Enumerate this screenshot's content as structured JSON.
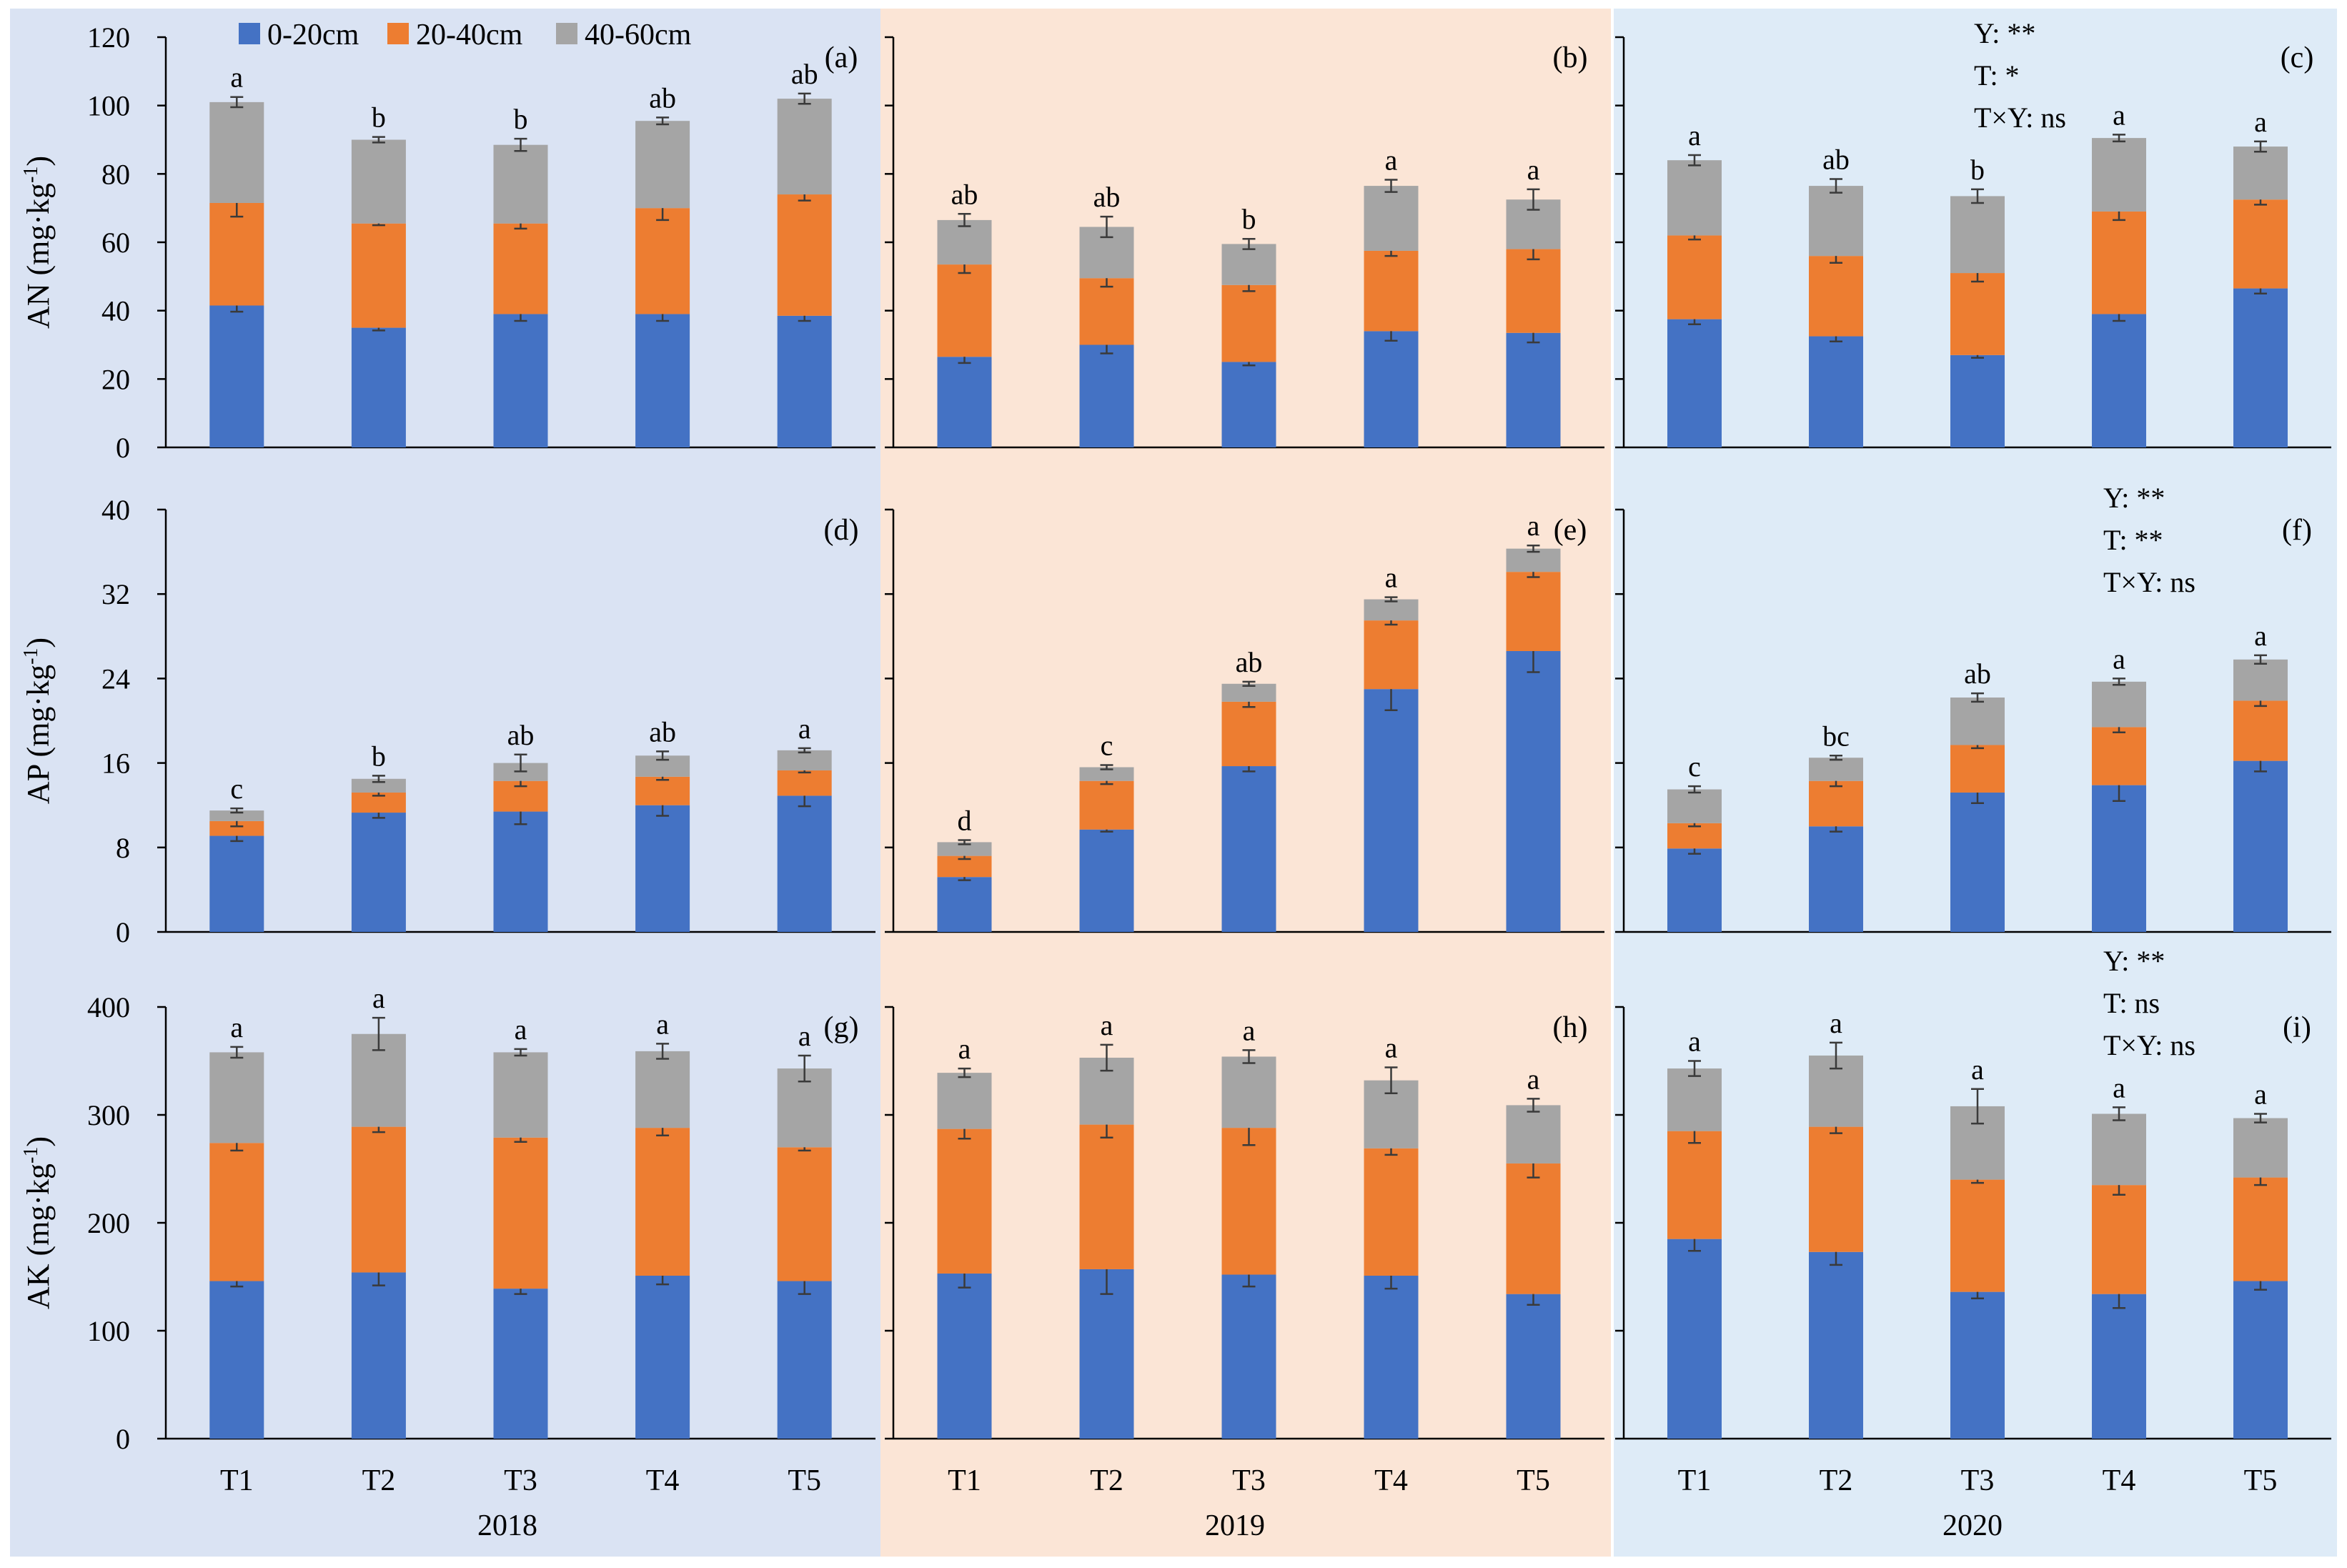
{
  "legend": [
    {
      "name": "0-20cm",
      "color": "#4472C4"
    },
    {
      "name": "20-40cm",
      "color": "#ED7D31"
    },
    {
      "name": "40-60cm",
      "color": "#A5A5A5"
    }
  ],
  "columns": [
    {
      "year": "2018",
      "background": "#DAE3F3"
    },
    {
      "year": "2019",
      "background": "#FBE5D6"
    },
    {
      "year": "2020",
      "background": "#DEEBF7"
    }
  ],
  "categories": [
    "T1",
    "T2",
    "T3",
    "T4",
    "T5"
  ],
  "rows": [
    {
      "ylabel": "AN (mg·kg",
      "ylabel_sup": "-1",
      "ylabel_tail": ")",
      "ylim": [
        0,
        120
      ],
      "ticks": [
        0,
        20,
        40,
        60,
        80,
        100,
        120
      ]
    },
    {
      "ylabel": "AP (mg·kg",
      "ylabel_sup": "-1",
      "ylabel_tail": ")",
      "ylim": [
        0,
        40
      ],
      "ticks": [
        0,
        8,
        16,
        24,
        32,
        40
      ]
    },
    {
      "ylabel": "AK (mg·kg",
      "ylabel_sup": "-1",
      "ylabel_tail": ")",
      "ylim": [
        0,
        400
      ],
      "ticks": [
        0,
        100,
        200,
        300,
        400
      ]
    }
  ],
  "chart_data": [
    {
      "type": "bar",
      "panel": "(a)",
      "variable": "AN",
      "year": "2018",
      "categories": [
        "T1",
        "T2",
        "T3",
        "T4",
        "T5"
      ],
      "series": [
        {
          "name": "0-20cm",
          "values": [
            41.5,
            35.0,
            39.0,
            39.0,
            38.5
          ],
          "errors": [
            1.8,
            0.8,
            2.0,
            2.0,
            1.5
          ]
        },
        {
          "name": "20-40cm",
          "values": [
            30.0,
            30.5,
            26.5,
            31.0,
            35.5
          ],
          "errors": [
            4.0,
            0.5,
            1.5,
            3.5,
            1.8
          ]
        },
        {
          "name": "40-60cm",
          "values": [
            29.5,
            24.5,
            23.0,
            25.5,
            28.0
          ],
          "errors": [
            1.5,
            0.8,
            1.8,
            1.0,
            1.5
          ]
        }
      ],
      "letters": [
        "a",
        "b",
        "b",
        "ab",
        "ab"
      ],
      "stats": []
    },
    {
      "type": "bar",
      "panel": "(b)",
      "variable": "AN",
      "year": "2019",
      "categories": [
        "T1",
        "T2",
        "T3",
        "T4",
        "T5"
      ],
      "series": [
        {
          "name": "0-20cm",
          "values": [
            26.5,
            30.0,
            25.0,
            34.0,
            33.5
          ],
          "errors": [
            1.8,
            2.5,
            1.0,
            2.8,
            2.8
          ]
        },
        {
          "name": "20-40cm",
          "values": [
            27.0,
            19.5,
            22.5,
            23.5,
            24.5
          ],
          "errors": [
            2.5,
            2.5,
            1.8,
            1.5,
            3.0
          ]
        },
        {
          "name": "40-60cm",
          "values": [
            13.0,
            15.0,
            12.0,
            19.0,
            14.5
          ],
          "errors": [
            1.8,
            3.0,
            1.5,
            1.8,
            3.0
          ]
        }
      ],
      "letters": [
        "ab",
        "ab",
        "b",
        "a",
        "a"
      ],
      "stats": []
    },
    {
      "type": "bar",
      "panel": "(c)",
      "variable": "AN",
      "year": "2020",
      "categories": [
        "T1",
        "T2",
        "T3",
        "T4",
        "T5"
      ],
      "series": [
        {
          "name": "0-20cm",
          "values": [
            37.5,
            32.5,
            27.0,
            39.0,
            46.5
          ],
          "errors": [
            1.5,
            1.5,
            0.8,
            2.0,
            1.5
          ]
        },
        {
          "name": "20-40cm",
          "values": [
            24.5,
            23.5,
            24.0,
            30.0,
            26.0
          ],
          "errors": [
            1.2,
            2.0,
            2.5,
            2.5,
            1.5
          ]
        },
        {
          "name": "40-60cm",
          "values": [
            22.0,
            20.5,
            22.5,
            21.5,
            15.5
          ],
          "errors": [
            1.5,
            2.0,
            2.0,
            1.0,
            1.5
          ]
        }
      ],
      "letters": [
        "a",
        "ab",
        "b",
        "a",
        "a"
      ],
      "stats": [
        "Y: **",
        "T: *",
        "T×Y: ns"
      ]
    },
    {
      "type": "bar",
      "panel": "(d)",
      "variable": "AP",
      "year": "2018",
      "categories": [
        "T1",
        "T2",
        "T3",
        "T4",
        "T5"
      ],
      "series": [
        {
          "name": "0-20cm",
          "values": [
            9.1,
            11.3,
            11.4,
            12.0,
            12.9
          ],
          "errors": [
            0.5,
            0.5,
            1.2,
            1.0,
            1.0
          ]
        },
        {
          "name": "20-40cm",
          "values": [
            1.4,
            1.9,
            2.9,
            2.7,
            2.4
          ],
          "errors": [
            0.5,
            0.3,
            0.5,
            0.3,
            0.2
          ]
        },
        {
          "name": "40-60cm",
          "values": [
            1.0,
            1.3,
            1.7,
            2.0,
            1.9
          ],
          "errors": [
            0.2,
            0.3,
            0.8,
            0.4,
            0.2
          ]
        }
      ],
      "letters": [
        "c",
        "b",
        "ab",
        "ab",
        "a"
      ],
      "stats": []
    },
    {
      "type": "bar",
      "panel": "(e)",
      "variable": "AP",
      "year": "2019",
      "categories": [
        "T1",
        "T2",
        "T3",
        "T4",
        "T5"
      ],
      "series": [
        {
          "name": "0-20cm",
          "values": [
            5.2,
            9.7,
            15.7,
            23.0,
            26.6
          ],
          "errors": [
            0.3,
            0.2,
            0.5,
            2.0,
            2.0
          ]
        },
        {
          "name": "20-40cm",
          "values": [
            2.0,
            4.6,
            6.1,
            6.5,
            7.5
          ],
          "errors": [
            0.3,
            0.3,
            0.5,
            0.4,
            0.5
          ]
        },
        {
          "name": "40-60cm",
          "values": [
            1.3,
            1.3,
            1.7,
            2.0,
            2.2
          ],
          "errors": [
            0.2,
            0.2,
            0.2,
            0.2,
            0.3
          ]
        }
      ],
      "letters": [
        "d",
        "c",
        "ab",
        "a",
        "a"
      ],
      "stats": []
    },
    {
      "type": "bar",
      "panel": "(f)",
      "variable": "AP",
      "year": "2020",
      "categories": [
        "T1",
        "T2",
        "T3",
        "T4",
        "T5"
      ],
      "series": [
        {
          "name": "0-20cm",
          "values": [
            7.9,
            10.0,
            13.2,
            13.9,
            16.2
          ],
          "errors": [
            0.5,
            0.5,
            1.0,
            1.5,
            1.0
          ]
        },
        {
          "name": "20-40cm",
          "values": [
            2.4,
            4.3,
            4.5,
            5.5,
            5.7
          ],
          "errors": [
            0.3,
            0.5,
            0.3,
            0.5,
            0.5
          ]
        },
        {
          "name": "40-60cm",
          "values": [
            3.2,
            2.2,
            4.5,
            4.3,
            3.9
          ],
          "errors": [
            0.3,
            0.2,
            0.4,
            0.3,
            0.4
          ]
        }
      ],
      "letters": [
        "c",
        "bc",
        "ab",
        "a",
        "a"
      ],
      "stats": [
        "Y: **",
        "T: **",
        "T×Y: ns"
      ]
    },
    {
      "type": "bar",
      "panel": "(g)",
      "variable": "AK",
      "year": "2018",
      "categories": [
        "T1",
        "T2",
        "T3",
        "T4",
        "T5"
      ],
      "series": [
        {
          "name": "0-20cm",
          "values": [
            146,
            154,
            139,
            151,
            146
          ],
          "errors": [
            5,
            12,
            5,
            8,
            12
          ]
        },
        {
          "name": "20-40cm",
          "values": [
            128,
            135,
            140,
            137,
            124
          ],
          "errors": [
            7,
            5,
            4,
            7,
            3
          ]
        },
        {
          "name": "40-60cm",
          "values": [
            84,
            86,
            79,
            71,
            73
          ],
          "errors": [
            5,
            15,
            3,
            7,
            12
          ]
        }
      ],
      "letters": [
        "a",
        "a",
        "a",
        "a",
        "a"
      ],
      "stats": []
    },
    {
      "type": "bar",
      "panel": "(h)",
      "variable": "AK",
      "year": "2019",
      "categories": [
        "T1",
        "T2",
        "T3",
        "T4",
        "T5"
      ],
      "series": [
        {
          "name": "0-20cm",
          "values": [
            153,
            157,
            152,
            151,
            134
          ],
          "errors": [
            13,
            23,
            11,
            12,
            10
          ]
        },
        {
          "name": "20-40cm",
          "values": [
            134,
            134,
            136,
            118,
            121
          ],
          "errors": [
            9,
            12,
            16,
            6,
            13
          ]
        },
        {
          "name": "40-60cm",
          "values": [
            52,
            62,
            66,
            63,
            54
          ],
          "errors": [
            4,
            12,
            6,
            12,
            6
          ]
        }
      ],
      "letters": [
        "a",
        "a",
        "a",
        "a",
        "a"
      ],
      "stats": []
    },
    {
      "type": "bar",
      "panel": "(i)",
      "variable": "AK",
      "year": "2020",
      "categories": [
        "T1",
        "T2",
        "T3",
        "T4",
        "T5"
      ],
      "series": [
        {
          "name": "0-20cm",
          "values": [
            185,
            173,
            136,
            134,
            146
          ],
          "errors": [
            11,
            12,
            6,
            13,
            8
          ]
        },
        {
          "name": "20-40cm",
          "values": [
            100,
            116,
            104,
            101,
            96
          ],
          "errors": [
            11,
            6,
            3,
            9,
            7
          ]
        },
        {
          "name": "40-60cm",
          "values": [
            58,
            66,
            68,
            66,
            55
          ],
          "errors": [
            7,
            12,
            16,
            6,
            4
          ]
        }
      ],
      "letters": [
        "a",
        "a",
        "a",
        "a",
        "a"
      ],
      "stats": [
        "Y: **",
        "T: ns",
        "T×Y: ns"
      ]
    }
  ]
}
